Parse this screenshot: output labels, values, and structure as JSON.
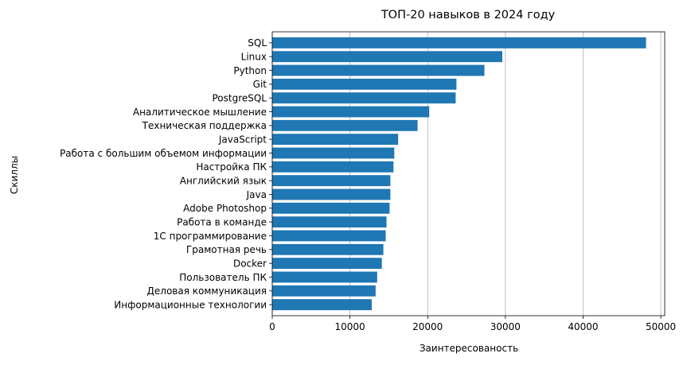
{
  "chart_data": {
    "type": "bar",
    "orientation": "horizontal",
    "title": "ТОП-20 навыков в 2024 году",
    "xlabel": "Заинтересованость",
    "ylabel": "Скиллы",
    "categories": [
      "SQL",
      "Linux",
      "Python",
      "Git",
      "PostgreSQL",
      "Аналитическое мышление",
      "Техническая поддержка",
      "JavaScript",
      "Работа с большим объемом информации",
      "Настройка ПК",
      "Английский язык",
      "Java",
      "Adobe Photoshop",
      "Работа в команде",
      "1С программирование",
      "Грамотная речь",
      "Docker",
      "Пользователь ПК",
      "Деловая коммуникация",
      "Информационные технологии"
    ],
    "values": [
      48100,
      29600,
      27300,
      23700,
      23600,
      20200,
      18700,
      16200,
      15700,
      15600,
      15200,
      15200,
      15100,
      14700,
      14600,
      14300,
      14100,
      13500,
      13300,
      12800
    ],
    "xlim": [
      0,
      50500
    ],
    "xticks": [
      0,
      10000,
      20000,
      30000,
      40000,
      50000
    ],
    "xtick_labels": [
      "0",
      "10000",
      "20000",
      "30000",
      "40000",
      "50000"
    ],
    "grid": "x",
    "colors": {
      "bar": "#1f77b4",
      "grid": "#b0b0b0",
      "axis": "#000000"
    }
  }
}
